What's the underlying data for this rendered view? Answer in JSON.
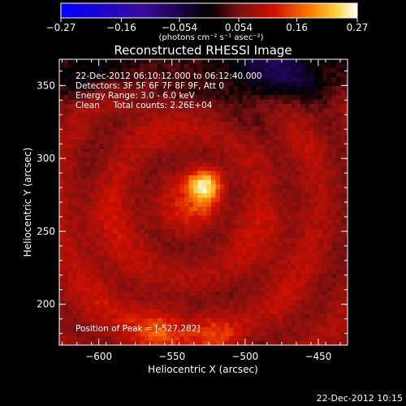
{
  "chart_data": {
    "type": "heatmap",
    "title": "Reconstructed RHESSI Image",
    "xlabel": "Heliocentric X (arcsec)",
    "ylabel": "Heliocentric Y (arcsec)",
    "xlim": [
      -627,
      -430
    ],
    "ylim": [
      172,
      368
    ],
    "xticks": [
      -600,
      -550,
      -500,
      -450
    ],
    "xtick_labels": [
      "−600",
      "−550",
      "−500",
      "−450"
    ],
    "yticks": [
      200,
      250,
      300,
      350
    ],
    "ytick_labels": [
      "200",
      "250",
      "300",
      "350"
    ],
    "colorbar": {
      "range": [
        -0.27,
        0.27
      ],
      "ticks": [
        -0.27,
        -0.16,
        -0.054,
        0.054,
        0.16,
        0.27
      ],
      "tick_labels": [
        "−0.27",
        "−0.16",
        "−0.054",
        "0.054",
        "0.16",
        "0.27"
      ],
      "unit_label": "(photons cm⁻² s⁻¹ asec⁻²)",
      "colors": [
        "#0000ff",
        "#3a0a9a",
        "#000000",
        "#7a1010",
        "#d01000",
        "#ff7a00",
        "#ffd040",
        "#ffffff"
      ]
    },
    "info_lines": [
      "22-Dec-2012 06:10:12.000 to 06:12:40.000",
      "Detectors: 3F 5F 6F 7F 8F 9F, Att 0",
      "Energy Range: 3.0 - 6.0 keV",
      "Clean     Total counts: 2.26E+04"
    ],
    "peak_label": "Position of Peak = [-527,282]",
    "peak": {
      "x": -527,
      "y": 282,
      "value": 0.27
    },
    "sources": [
      {
        "x": -527,
        "y": 282,
        "amplitude": 0.16,
        "sigma": 8
      },
      {
        "x": -535,
        "y": 268,
        "amplitude": 0.05,
        "sigma": 12
      },
      {
        "x": -560,
        "y": 180,
        "amplitude": 0.07,
        "sigma": 14
      },
      {
        "x": -520,
        "y": 178,
        "amplitude": 0.06,
        "sigma": 12
      },
      {
        "x": -595,
        "y": 258,
        "amplitude": 0.03,
        "sigma": 22
      },
      {
        "x": -600,
        "y": 205,
        "amplitude": 0.025,
        "sigma": 20
      },
      {
        "x": -485,
        "y": 245,
        "amplitude": 0.03,
        "sigma": 20
      },
      {
        "x": -470,
        "y": 310,
        "amplitude": 0.02,
        "sigma": 18
      },
      {
        "x": -560,
        "y": 330,
        "amplitude": 0.02,
        "sigma": 20
      },
      {
        "x": -470,
        "y": 200,
        "amplitude": 0.02,
        "sigma": 16
      },
      {
        "x": -480,
        "y": 360,
        "amplitude": -0.06,
        "sigma": 22
      }
    ],
    "background_level": 0.07
  },
  "timestamp": "22-Dec-2012 10:15"
}
